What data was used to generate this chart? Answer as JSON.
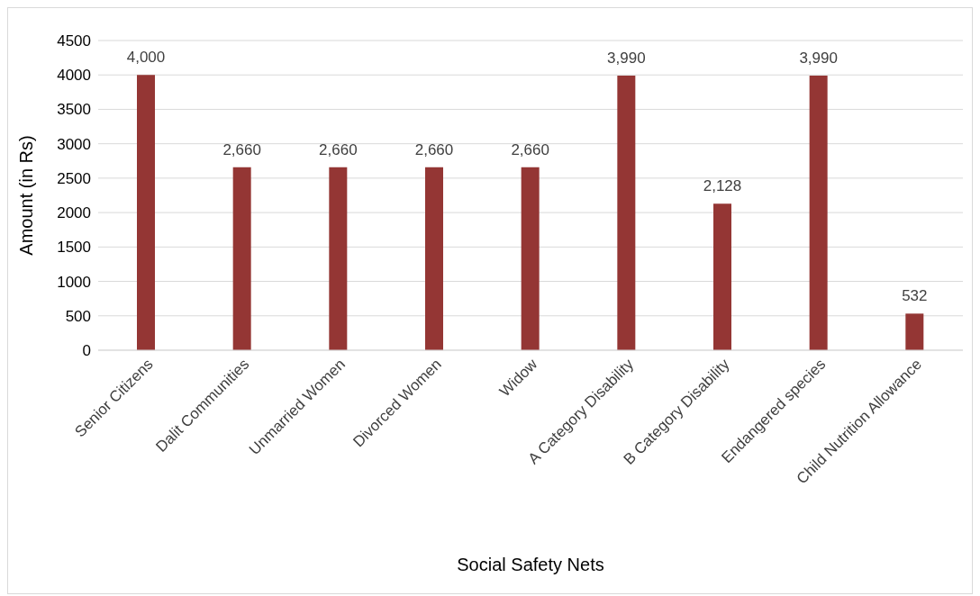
{
  "chart_data": {
    "type": "bar",
    "xlabel": "Social Safety Nets",
    "ylabel": "Amount (in Rs)",
    "categories": [
      "Senior Citizens",
      "Dalit Communities",
      "Unmarried Women",
      "Divorced Women",
      "Widow",
      "A Category Disability",
      "B Category Disability",
      "Endangered species",
      "Child Nutrition Allowance"
    ],
    "values": [
      4000,
      2660,
      2660,
      2660,
      2660,
      3990,
      2128,
      3990,
      532
    ],
    "value_labels": [
      "4,000",
      "2,660",
      "2,660",
      "2,660",
      "2,660",
      "3,990",
      "2,128",
      "3,990",
      "532"
    ],
    "color": "#943634",
    "ylim": [
      0,
      4500
    ],
    "yticks": [
      0,
      500,
      1000,
      1500,
      2000,
      2500,
      3000,
      3500,
      4000,
      4500
    ],
    "grid": "y",
    "legend": false
  }
}
